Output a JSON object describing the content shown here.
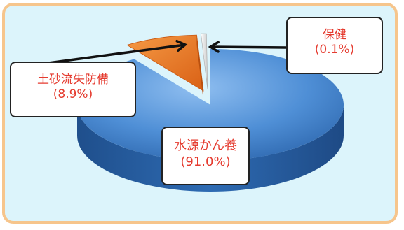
{
  "chart_data": {
    "type": "pie",
    "title": "",
    "slices": [
      {
        "label": "水源かん養",
        "value_text": "(91.0%)",
        "value": 91.0,
        "color": "#4f8fd6"
      },
      {
        "label": "土砂流失防備",
        "value_text": "(8.9%)",
        "value": 8.9,
        "color": "#f07d2e"
      },
      {
        "label": "保健",
        "value_text": "(0.1%)",
        "value": 0.1,
        "color": "#e8e8e8"
      }
    ],
    "legend": "callouts",
    "style": "3d"
  },
  "colors": {
    "frame_border": "#f6c58c",
    "frame_background": "#dcf4fb",
    "label_text": "#e53b2f"
  }
}
